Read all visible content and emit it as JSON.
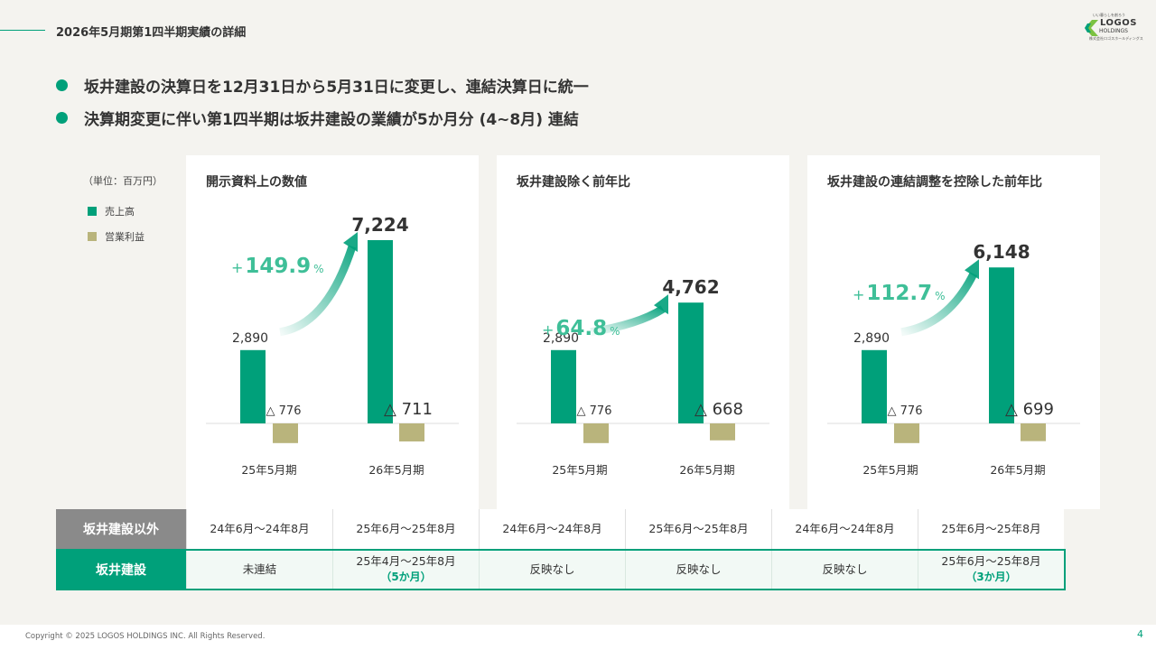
{
  "header": {
    "title": "2026年5月期第1四半期実績の詳細"
  },
  "logo": {
    "tagline": "いい暮らしを創ろう",
    "name": "LOGOS",
    "sub": "HOLDINGS",
    "company": "株式会社ロゴスホールディングス"
  },
  "bullets": [
    "坂井建設の決算日を12月31日から5月31日に変更し、連結決算日に統一",
    "決算期変更に伴い第1四半期は坂井建設の業績が5か月分 (4~8月) 連結"
  ],
  "legend": {
    "unit": "（単位：百万円）",
    "items": [
      {
        "label": "売上高",
        "color": "#00a07a"
      },
      {
        "label": "営業利益",
        "color": "#b9b47c"
      }
    ]
  },
  "colors": {
    "accent": "#00a07a",
    "gray_header": "#8a8a8a",
    "profit": "#b9b47c"
  },
  "chart_data": [
    {
      "type": "bar",
      "title": "開示資料上の数値",
      "categories": [
        "25年5月期",
        "26年5月期"
      ],
      "series": [
        {
          "name": "売上高",
          "values": [
            2890,
            7224
          ],
          "labels": [
            "2,890",
            "7,224"
          ]
        },
        {
          "name": "営業利益",
          "values": [
            -776,
            -711
          ],
          "labels": [
            "△ 776",
            "△ 711"
          ]
        }
      ],
      "growth": {
        "sign": "+",
        "value": "149.9",
        "unit": "%"
      }
    },
    {
      "type": "bar",
      "title": "坂井建設除く前年比",
      "categories": [
        "25年5月期",
        "26年5月期"
      ],
      "series": [
        {
          "name": "売上高",
          "values": [
            2890,
            4762
          ],
          "labels": [
            "2,890",
            "4,762"
          ]
        },
        {
          "name": "営業利益",
          "values": [
            -776,
            -668
          ],
          "labels": [
            "△ 776",
            "△ 668"
          ]
        }
      ],
      "growth": {
        "sign": "+",
        "value": "64.8",
        "unit": "%"
      }
    },
    {
      "type": "bar",
      "title": "坂井建設の連結調整を控除した前年比",
      "categories": [
        "25年5月期",
        "26年5月期"
      ],
      "series": [
        {
          "name": "売上高",
          "values": [
            2890,
            6148
          ],
          "labels": [
            "2,890",
            "6,148"
          ]
        },
        {
          "name": "営業利益",
          "values": [
            -776,
            -699
          ],
          "labels": [
            "△ 776",
            "△ 699"
          ]
        }
      ],
      "growth": {
        "sign": "+",
        "value": "112.7",
        "unit": "%"
      }
    }
  ],
  "table": {
    "row1": {
      "header": "坂井建設以外",
      "cells": [
        {
          "text": "24年6月～24年8月"
        },
        {
          "text": "25年6月～25年8月"
        },
        {
          "text": "24年6月～24年8月"
        },
        {
          "text": "25年6月～25年8月"
        },
        {
          "text": "24年6月～24年8月"
        },
        {
          "text": "25年6月～25年8月"
        }
      ]
    },
    "row2": {
      "header": "坂井建設",
      "cells": [
        {
          "text": "未連結"
        },
        {
          "text": "25年4月～25年8月",
          "note": "（5か月）"
        },
        {
          "text": "反映なし"
        },
        {
          "text": "反映なし"
        },
        {
          "text": "反映なし"
        },
        {
          "text": "25年6月～25年8月",
          "note": "（3か月）"
        }
      ]
    }
  },
  "footer": {
    "copyright": "Copyright © 2025 LOGOS HOLDINGS INC. All Rights Reserved.",
    "page": "4"
  }
}
